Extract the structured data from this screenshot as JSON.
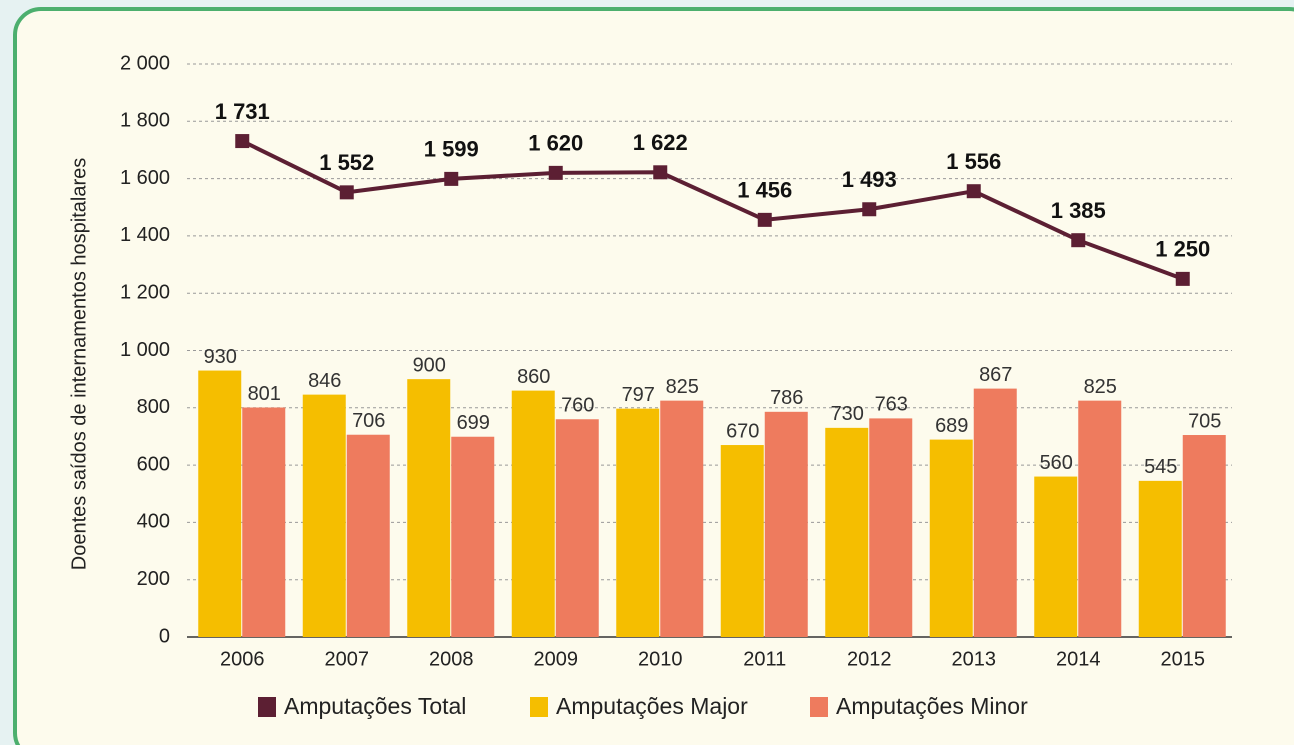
{
  "chart_data": {
    "type": "bar",
    "y_axis_label": "Doentes saídos de internamentos hospitalares",
    "categories": [
      "2006",
      "2007",
      "2008",
      "2009",
      "2010",
      "2011",
      "2012",
      "2013",
      "2014",
      "2015"
    ],
    "series": [
      {
        "name": "Amputações Total",
        "type": "line",
        "color": "#5c1f33",
        "values": [
          1731,
          1552,
          1599,
          1620,
          1622,
          1456,
          1493,
          1556,
          1385,
          1250
        ],
        "value_labels": [
          "1 731",
          "1 552",
          "1 599",
          "1 620",
          "1 622",
          "1 456",
          "1 493",
          "1 556",
          "1 385",
          "1 250"
        ]
      },
      {
        "name": "Amputações Major",
        "type": "bar",
        "color": "#f5be00",
        "values": [
          930,
          846,
          900,
          860,
          797,
          670,
          730,
          689,
          560,
          545
        ]
      },
      {
        "name": "Amputações Minor",
        "type": "bar",
        "color": "#ee7b5e",
        "values": [
          801,
          706,
          699,
          760,
          825,
          786,
          763,
          867,
          825,
          705
        ]
      }
    ],
    "ylim": [
      0,
      2000
    ],
    "yticks": [
      0,
      200,
      400,
      600,
      800,
      {
        "value": 1000,
        "label": "1 000"
      },
      {
        "value": 1200,
        "label": "1 200"
      },
      {
        "value": 1400,
        "label": "1 400"
      },
      {
        "value": 1600,
        "label": "1 600"
      },
      {
        "value": 1800,
        "label": "1 800"
      },
      {
        "value": 2000,
        "label": "2 000"
      }
    ],
    "grid": true,
    "legend": "bottom"
  }
}
